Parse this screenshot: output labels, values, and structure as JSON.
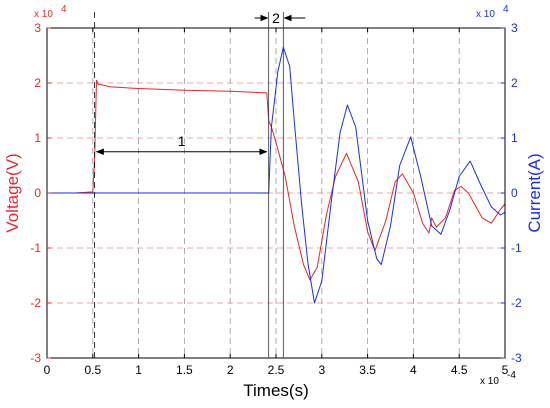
{
  "chart_data": {
    "type": "line",
    "title": "",
    "xlabel": "Times(s)",
    "ylabel_left": "Voltage(V)",
    "ylabel_right": "Current(A)",
    "x_multiplier": "x 10",
    "x_multiplier_exp": "-4",
    "y_left_multiplier": "x 10",
    "y_left_multiplier_exp": "4",
    "y_right_multiplier": "x 10",
    "y_right_multiplier_exp": "4",
    "xlim": [
      0,
      5
    ],
    "ylim_left": [
      -3,
      3
    ],
    "ylim_right": [
      -3,
      3
    ],
    "x_ticks": [
      "0",
      "0.5",
      "1",
      "1.5",
      "2",
      "2.5",
      "3",
      "3.5",
      "4",
      "4.5",
      "5"
    ],
    "y_left_ticks": [
      "-3",
      "-2",
      "-1",
      "0",
      "1",
      "2",
      "3"
    ],
    "y_right_ticks": [
      "-3",
      "-2",
      "-1",
      "0",
      "1",
      "2",
      "3"
    ],
    "grid": true,
    "colors": {
      "voltage": "#e8262b",
      "current": "#1a2ee8",
      "axis": "#000000"
    },
    "series": [
      {
        "axis": "left",
        "color": "#e8262b",
        "points": [
          [
            0,
            0
          ],
          [
            0.3,
            0
          ],
          [
            0.5,
            0.02
          ],
          [
            0.52,
            0.6
          ],
          [
            0.54,
            2.05
          ],
          [
            0.56,
            1.98
          ],
          [
            0.7,
            1.93
          ],
          [
            1.0,
            1.9
          ],
          [
            1.5,
            1.87
          ],
          [
            2.0,
            1.85
          ],
          [
            2.4,
            1.82
          ],
          [
            2.42,
            1.32
          ],
          [
            2.45,
            1.2
          ],
          [
            2.5,
            0.92
          ],
          [
            2.6,
            0.3
          ],
          [
            2.7,
            -0.6
          ],
          [
            2.8,
            -1.3
          ],
          [
            2.87,
            -1.58
          ],
          [
            2.95,
            -1.35
          ],
          [
            3.05,
            -0.4
          ],
          [
            3.15,
            0.3
          ],
          [
            3.27,
            0.72
          ],
          [
            3.4,
            0.2
          ],
          [
            3.5,
            -0.7
          ],
          [
            3.58,
            -1.05
          ],
          [
            3.7,
            -0.5
          ],
          [
            3.8,
            0.2
          ],
          [
            3.88,
            0.35
          ],
          [
            4.0,
            0.0
          ],
          [
            4.1,
            -0.55
          ],
          [
            4.17,
            -0.73
          ],
          [
            4.2,
            -0.45
          ],
          [
            4.25,
            -0.62
          ],
          [
            4.35,
            -0.45
          ],
          [
            4.45,
            0.05
          ],
          [
            4.52,
            0.12
          ],
          [
            4.6,
            0.0
          ],
          [
            4.75,
            -0.45
          ],
          [
            4.85,
            -0.55
          ],
          [
            4.95,
            -0.3
          ],
          [
            5.0,
            -0.2
          ]
        ]
      },
      {
        "axis": "right",
        "color": "#1a2ee8",
        "points": [
          [
            0,
            0
          ],
          [
            0.5,
            0
          ],
          [
            1.0,
            0
          ],
          [
            1.5,
            0
          ],
          [
            2.0,
            0
          ],
          [
            2.42,
            0
          ],
          [
            2.45,
            1.2
          ],
          [
            2.52,
            2.2
          ],
          [
            2.58,
            2.65
          ],
          [
            2.65,
            2.3
          ],
          [
            2.7,
            1.3
          ],
          [
            2.78,
            -0.2
          ],
          [
            2.85,
            -1.3
          ],
          [
            2.92,
            -2.0
          ],
          [
            3.0,
            -1.6
          ],
          [
            3.1,
            -0.2
          ],
          [
            3.2,
            1.1
          ],
          [
            3.28,
            1.6
          ],
          [
            3.37,
            1.2
          ],
          [
            3.5,
            -0.5
          ],
          [
            3.6,
            -1.2
          ],
          [
            3.65,
            -1.3
          ],
          [
            3.75,
            -0.6
          ],
          [
            3.85,
            0.5
          ],
          [
            3.97,
            1.02
          ],
          [
            4.08,
            0.3
          ],
          [
            4.2,
            -0.6
          ],
          [
            4.3,
            -0.75
          ],
          [
            4.4,
            -0.3
          ],
          [
            4.5,
            0.3
          ],
          [
            4.62,
            0.58
          ],
          [
            4.72,
            0.2
          ],
          [
            4.85,
            -0.25
          ],
          [
            4.95,
            -0.4
          ],
          [
            5.0,
            -0.35
          ]
        ]
      }
    ],
    "annotations": {
      "interval_1_label": "1",
      "interval_2_label": "2",
      "interval_1": [
        0.52,
        2.42
      ],
      "interval_2": [
        2.42,
        2.58
      ],
      "markers": [
        0.52,
        2.42,
        2.58
      ]
    }
  }
}
